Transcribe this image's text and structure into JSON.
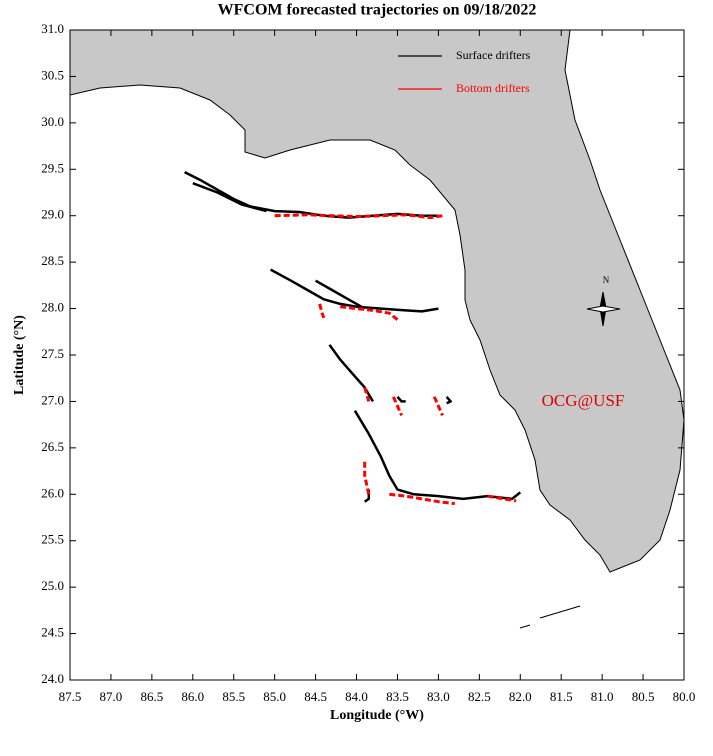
{
  "chart_data": {
    "type": "line",
    "title": "WFCOM forecasted trajectories on 09/18/2022",
    "x_label": "Longitude (°W)",
    "y_label": "Latitude (°N)",
    "annotation": "OCG@USF",
    "compass_label": "N",
    "xlim": [
      87.5,
      80.0
    ],
    "ylim": [
      24.0,
      31.0
    ],
    "xticks": [
      {
        "value": 87.5,
        "label": "87.5"
      },
      {
        "value": 87,
        "label": "87.0"
      },
      {
        "value": 86.5,
        "label": "86.5"
      },
      {
        "value": 86,
        "label": "86.0"
      },
      {
        "value": 85.5,
        "label": "85.5"
      },
      {
        "value": 85,
        "label": "85.0"
      },
      {
        "value": 84.5,
        "label": "84.5"
      },
      {
        "value": 84,
        "label": "84.0"
      },
      {
        "value": 83.5,
        "label": "83.5"
      },
      {
        "value": 83,
        "label": "83.0"
      },
      {
        "value": 82.5,
        "label": "82.5"
      },
      {
        "value": 82,
        "label": "82.0"
      },
      {
        "value": 81.5,
        "label": "81.5"
      },
      {
        "value": 81,
        "label": "81.0"
      },
      {
        "value": 80.5,
        "label": "80.5"
      },
      {
        "value": 80,
        "label": "80.0"
      }
    ],
    "yticks": [
      {
        "value": 24,
        "label": "24.0"
      },
      {
        "value": 24.5,
        "label": "24.5"
      },
      {
        "value": 25,
        "label": "25.0"
      },
      {
        "value": 25.5,
        "label": "25.5"
      },
      {
        "value": 26,
        "label": "26.0"
      },
      {
        "value": 26.5,
        "label": "26.5"
      },
      {
        "value": 27,
        "label": "27.0"
      },
      {
        "value": 27.5,
        "label": "27.5"
      },
      {
        "value": 28,
        "label": "28.0"
      },
      {
        "value": 28.5,
        "label": "28.5"
      },
      {
        "value": 29,
        "label": "29.0"
      },
      {
        "value": 29.5,
        "label": "29.5"
      },
      {
        "value": 30,
        "label": "30.0"
      },
      {
        "value": 30.5,
        "label": "30.5"
      },
      {
        "value": 31,
        "label": "31.0"
      }
    ],
    "series": [
      {
        "name": "Surface drifters",
        "color": "#000000",
        "x": [
          86.1,
          85.9,
          85.7,
          85.5,
          85.3,
          85.0,
          84.7,
          84.4,
          84.1,
          83.8,
          83.5,
          83.2,
          83.0,
          null,
          86.0,
          85.7,
          85.4,
          85.1,
          null,
          85.05,
          84.8,
          84.6,
          84.4,
          84.2,
          84.0,
          83.7,
          83.4,
          83.2,
          83.0,
          null,
          84.5,
          84.3,
          84.1,
          83.9,
          null,
          84.33,
          84.2,
          84.05,
          83.9,
          83.8,
          null,
          84.02,
          83.85,
          83.7,
          83.6,
          83.5,
          83.3,
          83.0,
          82.7,
          82.4,
          82.1,
          82.0,
          null,
          83.85,
          83.85,
          83.9,
          null,
          83.5,
          83.45,
          83.4,
          null,
          82.9,
          82.85,
          82.9
        ],
        "values": [
          29.47,
          29.38,
          29.28,
          29.18,
          29.1,
          29.05,
          29.04,
          29.0,
          28.98,
          29.0,
          29.02,
          29.0,
          29.0,
          null,
          29.35,
          29.25,
          29.12,
          29.05,
          null,
          28.42,
          28.3,
          28.2,
          28.1,
          28.05,
          28.02,
          28.0,
          27.98,
          27.97,
          28.0,
          null,
          28.3,
          28.2,
          28.1,
          28.0,
          null,
          27.61,
          27.45,
          27.3,
          27.15,
          27.0,
          null,
          26.9,
          26.65,
          26.4,
          26.2,
          26.05,
          26.0,
          25.98,
          25.95,
          25.98,
          25.95,
          26.02,
          null,
          26.05,
          25.95,
          25.92,
          null,
          27.05,
          27.0,
          27.0,
          null,
          27.05,
          27.0,
          26.98
        ]
      },
      {
        "name": "Bottom drifters",
        "color": "#ff0000",
        "x": [
          85.0,
          84.6,
          84.3,
          84.0,
          83.7,
          83.4,
          83.1,
          82.95,
          null,
          84.45,
          84.42,
          84.4,
          null,
          84.2,
          84.0,
          83.8,
          83.6,
          83.5,
          null,
          83.9,
          83.85,
          null,
          83.55,
          83.5,
          83.45,
          null,
          83.05,
          83.0,
          82.95,
          null,
          83.9,
          83.9,
          83.85,
          null,
          83.6,
          83.4,
          83.2,
          83.0,
          82.8,
          null,
          82.4,
          82.2,
          82.05
        ],
        "values": [
          29.0,
          29.01,
          29.0,
          28.99,
          29.0,
          29.01,
          28.98,
          29.0,
          null,
          28.05,
          27.95,
          27.9,
          null,
          28.02,
          28.0,
          27.98,
          27.95,
          27.88,
          null,
          27.15,
          27.0,
          null,
          27.05,
          26.95,
          26.85,
          null,
          27.05,
          26.95,
          26.85,
          null,
          26.35,
          26.2,
          26.0,
          null,
          26.0,
          25.98,
          25.95,
          25.92,
          25.9,
          null,
          25.98,
          25.95,
          25.93
        ]
      }
    ]
  }
}
